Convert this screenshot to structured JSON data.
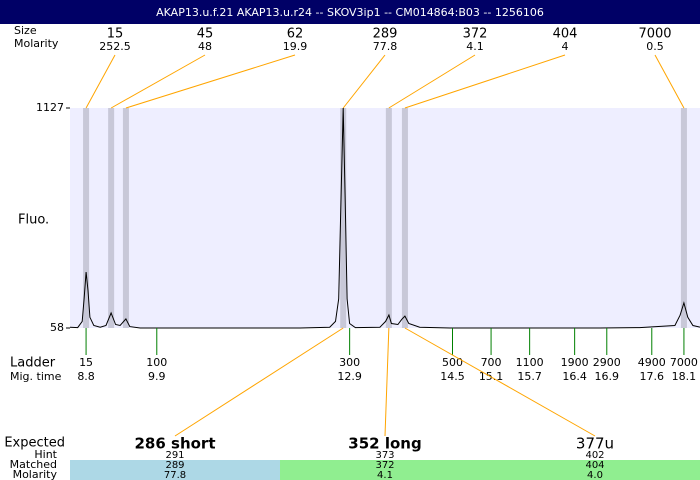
{
  "chart_data": {
    "type": "line",
    "title": "AKAP13.u.f.21  AKAP13.u.r24 -- SKOV3ip1 -- CM014864:B03 -- 1256106",
    "ylabel": "Fluo.",
    "ylim": [
      58,
      1127
    ],
    "yticks": [
      58,
      1127
    ],
    "xlim": [
      8.55,
      18.35
    ],
    "color": "#000000",
    "x": [
      8.55,
      8.67,
      8.74,
      8.77,
      8.8,
      8.83,
      8.86,
      8.92,
      9.02,
      9.11,
      9.19,
      9.26,
      9.33,
      9.42,
      9.48,
      9.64,
      10.57,
      12.13,
      12.59,
      12.68,
      12.73,
      12.76,
      12.8,
      12.83,
      12.86,
      12.9,
      12.99,
      13.37,
      13.46,
      13.51,
      13.55,
      13.65,
      13.71,
      13.76,
      13.82,
      13.99,
      14.46,
      16.79,
      17.41,
      17.96,
      18.04,
      18.1,
      18.16,
      18.24,
      18.35
    ],
    "values": [
      62,
      60,
      90,
      200,
      330,
      240,
      110,
      70,
      62,
      70,
      131,
      75,
      70,
      102,
      65,
      58,
      58,
      58,
      62,
      90,
      200,
      600,
      1127,
      700,
      200,
      80,
      60,
      62,
      90,
      121,
      80,
      75,
      100,
      116,
      80,
      62,
      58,
      58,
      60,
      70,
      120,
      180,
      110,
      70,
      62
    ],
    "peaks": {
      "size_label": "Size",
      "molarity_label": "Molarity",
      "sizes": [
        15,
        45,
        62,
        289,
        372,
        404,
        7000
      ],
      "molarities": [
        252.5,
        48,
        19.9,
        77.8,
        4.1,
        4,
        0.5
      ],
      "x": [
        8.8,
        9.19,
        9.42,
        12.8,
        13.51,
        13.76,
        18.1
      ]
    },
    "ladder": {
      "label": "Ladder",
      "time_label": "Mig. time",
      "sizes": [
        15,
        100,
        300,
        500,
        700,
        1100,
        1900,
        2900,
        4900,
        7000
      ],
      "times": [
        8.8,
        9.9,
        12.9,
        14.5,
        15.1,
        15.7,
        16.4,
        16.9,
        17.6,
        18.1
      ]
    },
    "expected": {
      "label": "Expected",
      "hint_label": "Hint",
      "matched_label": "Matched",
      "molarity_label": "Molarity",
      "columns": [
        {
          "name": "286 short",
          "hint": 291,
          "matched": 289,
          "molarity": "77.8",
          "color": "#add8e6"
        },
        {
          "name": "352 long",
          "hint": 373,
          "matched": 372,
          "molarity": "4.1",
          "color": "#90ee90"
        },
        {
          "name": "377u",
          "hint": 402,
          "matched": 404,
          "molarity": "4.0",
          "color": "#90ee90"
        }
      ]
    }
  }
}
